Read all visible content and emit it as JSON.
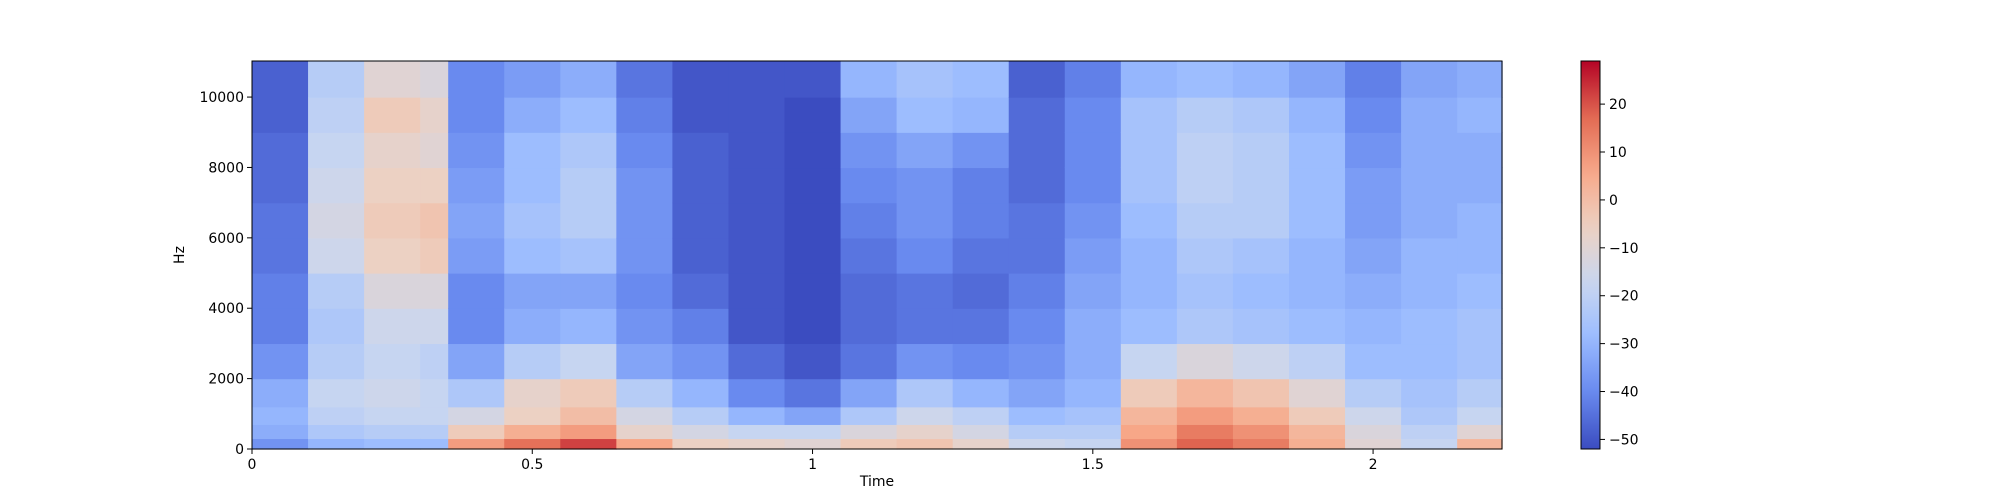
{
  "chart_data": {
    "type": "heatmap",
    "title": "",
    "xlabel": "Time",
    "ylabel": "Hz",
    "xlim": [
      0,
      2.23
    ],
    "ylim": [
      0,
      11025
    ],
    "x_ticks": [
      {
        "value": 0,
        "label": "0"
      },
      {
        "value": 0.5,
        "label": "0.5"
      },
      {
        "value": 1,
        "label": "1"
      },
      {
        "value": 1.5,
        "label": "1.5"
      },
      {
        "value": 2,
        "label": "2"
      }
    ],
    "y_ticks": [
      {
        "value": 0,
        "label": "0"
      },
      {
        "value": 2000,
        "label": "2000"
      },
      {
        "value": 4000,
        "label": "4000"
      },
      {
        "value": 6000,
        "label": "6000"
      },
      {
        "value": 8000,
        "label": "8000"
      },
      {
        "value": 10000,
        "label": "10000"
      }
    ],
    "colormap": "coolwarm",
    "colormap_stops": [
      "#3b4cc0",
      "#6788ee",
      "#9abbff",
      "#c9d7f0",
      "#edd1c2",
      "#f7a889",
      "#e26952",
      "#b40426"
    ],
    "colorbar": {
      "vmin": -52,
      "vmax": 29,
      "ticks": [
        {
          "value": 20,
          "label": "20"
        },
        {
          "value": 10,
          "label": "10"
        },
        {
          "value": 0,
          "label": "0"
        },
        {
          "value": -10,
          "label": "−10"
        },
        {
          "value": -20,
          "label": "−20"
        },
        {
          "value": -30,
          "label": "−30"
        },
        {
          "value": -40,
          "label": "−40"
        },
        {
          "value": -50,
          "label": "−50"
        }
      ]
    },
    "time_frames": [
      0.0,
      0.1,
      0.2,
      0.3,
      0.35,
      0.45,
      0.55,
      0.65,
      0.75,
      0.85,
      0.95,
      1.05,
      1.15,
      1.25,
      1.35,
      1.45,
      1.55,
      1.65,
      1.75,
      1.85,
      1.95,
      2.05,
      2.15,
      2.23
    ],
    "freq_bins": [
      0,
      300,
      700,
      1200,
      2000,
      3000,
      4000,
      5000,
      6000,
      7000,
      8000,
      9000,
      10000,
      11025
    ],
    "db_values": [
      [
        -38,
        -32,
        -30,
        -32,
        -38,
        -42,
        -42,
        -44,
        -44,
        -46,
        -46,
        -48,
        -48,
        -50
      ],
      [
        -30,
        -24,
        -20,
        -18,
        -22,
        -24,
        -22,
        -16,
        -14,
        -16,
        -18,
        -20,
        -22,
        -28
      ],
      [
        -28,
        -22,
        -18,
        -16,
        -18,
        -16,
        -12,
        -6,
        -4,
        -6,
        -8,
        -4,
        -10,
        -20
      ],
      [
        -28,
        -22,
        -18,
        -18,
        -20,
        -16,
        -12,
        -4,
        -2,
        -6,
        -10,
        -8,
        -12,
        -22
      ],
      [
        8,
        -4,
        -14,
        -24,
        -34,
        -40,
        -40,
        -36,
        -34,
        -36,
        -38,
        -40,
        -40,
        -46
      ],
      [
        16,
        4,
        -6,
        -8,
        -22,
        -32,
        -34,
        -28,
        -26,
        -28,
        -28,
        -32,
        -36,
        -44
      ],
      [
        22,
        8,
        0,
        -4,
        -18,
        -30,
        -34,
        -26,
        -22,
        -22,
        -24,
        -28,
        -32,
        -42
      ],
      [
        6,
        -8,
        -14,
        -22,
        -34,
        -38,
        -40,
        -38,
        -38,
        -38,
        -40,
        -42,
        -44,
        -48
      ],
      [
        -6,
        -14,
        -22,
        -30,
        -38,
        -42,
        -46,
        -48,
        -48,
        -48,
        -48,
        -50,
        -50,
        -50
      ],
      [
        -8,
        -18,
        -30,
        -40,
        -46,
        -50,
        -50,
        -50,
        -50,
        -50,
        -50,
        -50,
        -50,
        -50
      ],
      [
        -10,
        -18,
        -34,
        -44,
        -50,
        -52,
        -52,
        -52,
        -52,
        -52,
        -52,
        -52,
        -50,
        -50
      ],
      [
        -4,
        -12,
        -24,
        -34,
        -44,
        -46,
        -46,
        -44,
        -42,
        -40,
        -38,
        -34,
        -30,
        -32
      ],
      [
        -2,
        -8,
        -16,
        -24,
        -38,
        -44,
        -44,
        -40,
        -38,
        -38,
        -34,
        -28,
        -26,
        -28
      ],
      [
        -8,
        -14,
        -20,
        -30,
        -40,
        -44,
        -46,
        -44,
        -42,
        -42,
        -38,
        -30,
        -28,
        -30
      ],
      [
        -16,
        -22,
        -28,
        -34,
        -38,
        -40,
        -42,
        -44,
        -44,
        -46,
        -46,
        -46,
        -48,
        -50
      ],
      [
        -18,
        -22,
        -26,
        -30,
        -32,
        -32,
        -34,
        -36,
        -38,
        -40,
        -40,
        -40,
        -42,
        -48
      ],
      [
        10,
        6,
        2,
        -4,
        -18,
        -28,
        -30,
        -30,
        -28,
        -26,
        -26,
        -26,
        -30,
        -44
      ],
      [
        18,
        14,
        8,
        2,
        -12,
        -24,
        -26,
        -24,
        -22,
        -20,
        -20,
        -22,
        -28,
        -40
      ],
      [
        14,
        10,
        4,
        -2,
        -16,
        -26,
        -28,
        -26,
        -22,
        -22,
        -22,
        -24,
        -30,
        -42
      ],
      [
        4,
        2,
        -4,
        -10,
        -20,
        -28,
        -30,
        -30,
        -28,
        -28,
        -28,
        -30,
        -34,
        -44
      ],
      [
        -10,
        -12,
        -16,
        -22,
        -28,
        -30,
        -32,
        -34,
        -36,
        -36,
        -38,
        -40,
        -42,
        -48
      ],
      [
        -18,
        -20,
        -24,
        -26,
        -28,
        -28,
        -30,
        -30,
        -32,
        -32,
        -32,
        -32,
        -34,
        -40
      ],
      [
        2,
        -10,
        -18,
        -22,
        -26,
        -26,
        -28,
        -30,
        -30,
        -32,
        -32,
        -30,
        -32,
        -38
      ],
      [
        -4,
        -14,
        -22,
        -26,
        -30,
        -30,
        -32,
        -32,
        -34,
        -34,
        -34,
        -34,
        -36,
        -42
      ]
    ]
  }
}
